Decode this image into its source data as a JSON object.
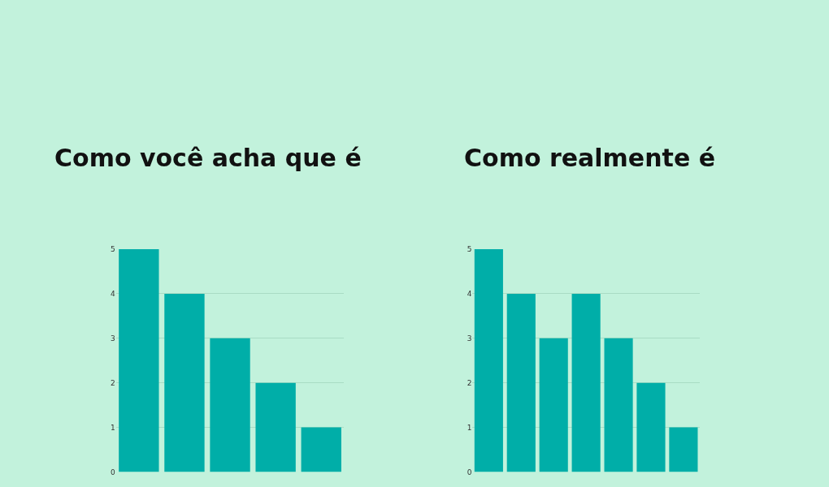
{
  "chart_data": [
    {
      "type": "bar",
      "title": "Como você acha que é",
      "categories": [
        null,
        null,
        null,
        null,
        null
      ],
      "values": [
        5,
        4,
        3,
        2,
        1
      ],
      "color": "#00aea8",
      "ylim": [
        0,
        5
      ],
      "yticks": [
        0,
        1,
        2,
        3,
        4,
        5
      ],
      "grid": "y",
      "tick_labels": "y"
    },
    {
      "type": "bar",
      "title": "Como realmente é",
      "categories": [
        null,
        null,
        null,
        null,
        null,
        null,
        null
      ],
      "values": [
        5,
        4,
        3,
        4,
        3,
        2,
        1
      ],
      "color": "#00aea8",
      "ylim": [
        0,
        5
      ],
      "yticks": [
        0,
        1,
        2,
        3,
        4,
        5
      ],
      "grid": "y",
      "tick_labels": "y"
    }
  ]
}
